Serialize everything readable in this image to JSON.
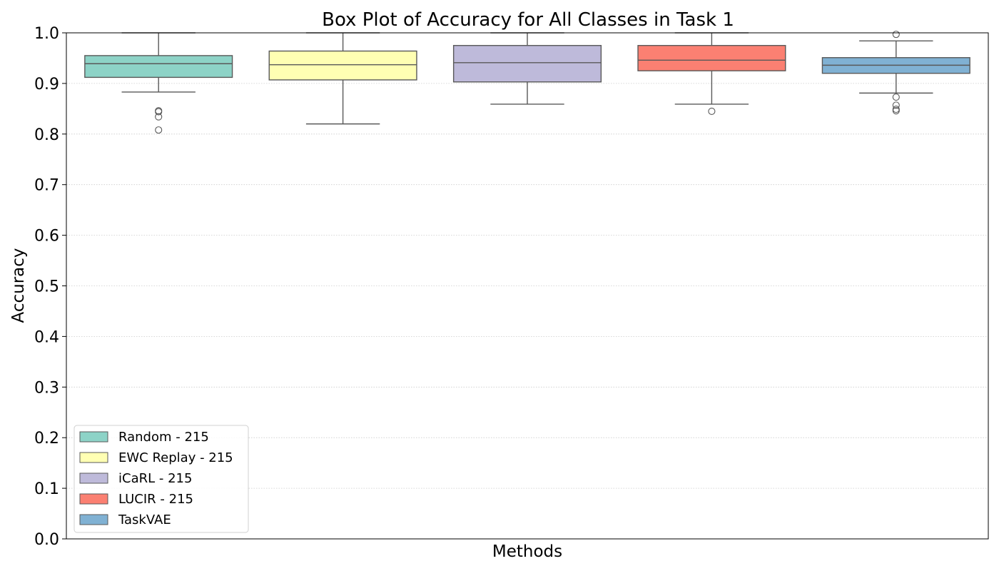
{
  "chart_data": {
    "type": "box",
    "title": "Box Plot of Accuracy for All Classes in Task 1",
    "xlabel": "Methods",
    "ylabel": "Accuracy",
    "ylim": [
      0.0,
      1.0
    ],
    "yticks": [
      "0.0",
      "0.1",
      "0.2",
      "0.3",
      "0.4",
      "0.5",
      "0.6",
      "0.7",
      "0.8",
      "0.9",
      "1.0"
    ],
    "grid": "horizontal dotted",
    "legend_position": "lower-left",
    "series": [
      {
        "name": "Random - 215",
        "color": "#8dd3c7",
        "whisker_low": 0.883,
        "q1": 0.912,
        "median": 0.939,
        "q3": 0.955,
        "whisker_high": 1.0,
        "outliers": [
          0.846,
          0.844,
          0.834,
          0.808
        ]
      },
      {
        "name": "EWC Replay - 215",
        "color": "#ffffb3",
        "whisker_low": 0.82,
        "q1": 0.907,
        "median": 0.937,
        "q3": 0.964,
        "whisker_high": 1.0,
        "outliers": []
      },
      {
        "name": "iCaRL - 215",
        "color": "#bebada",
        "whisker_low": 0.859,
        "q1": 0.903,
        "median": 0.941,
        "q3": 0.975,
        "whisker_high": 1.0,
        "outliers": []
      },
      {
        "name": "LUCIR - 215",
        "color": "#fb8072",
        "whisker_low": 0.859,
        "q1": 0.925,
        "median": 0.946,
        "q3": 0.975,
        "whisker_high": 1.0,
        "outliers": [
          0.845
        ]
      },
      {
        "name": "TaskVAE",
        "color": "#80b1d3",
        "whisker_low": 0.881,
        "q1": 0.92,
        "median": 0.936,
        "q3": 0.951,
        "whisker_high": 0.984,
        "outliers": [
          0.997,
          0.873,
          0.857,
          0.849,
          0.846
        ]
      }
    ]
  }
}
